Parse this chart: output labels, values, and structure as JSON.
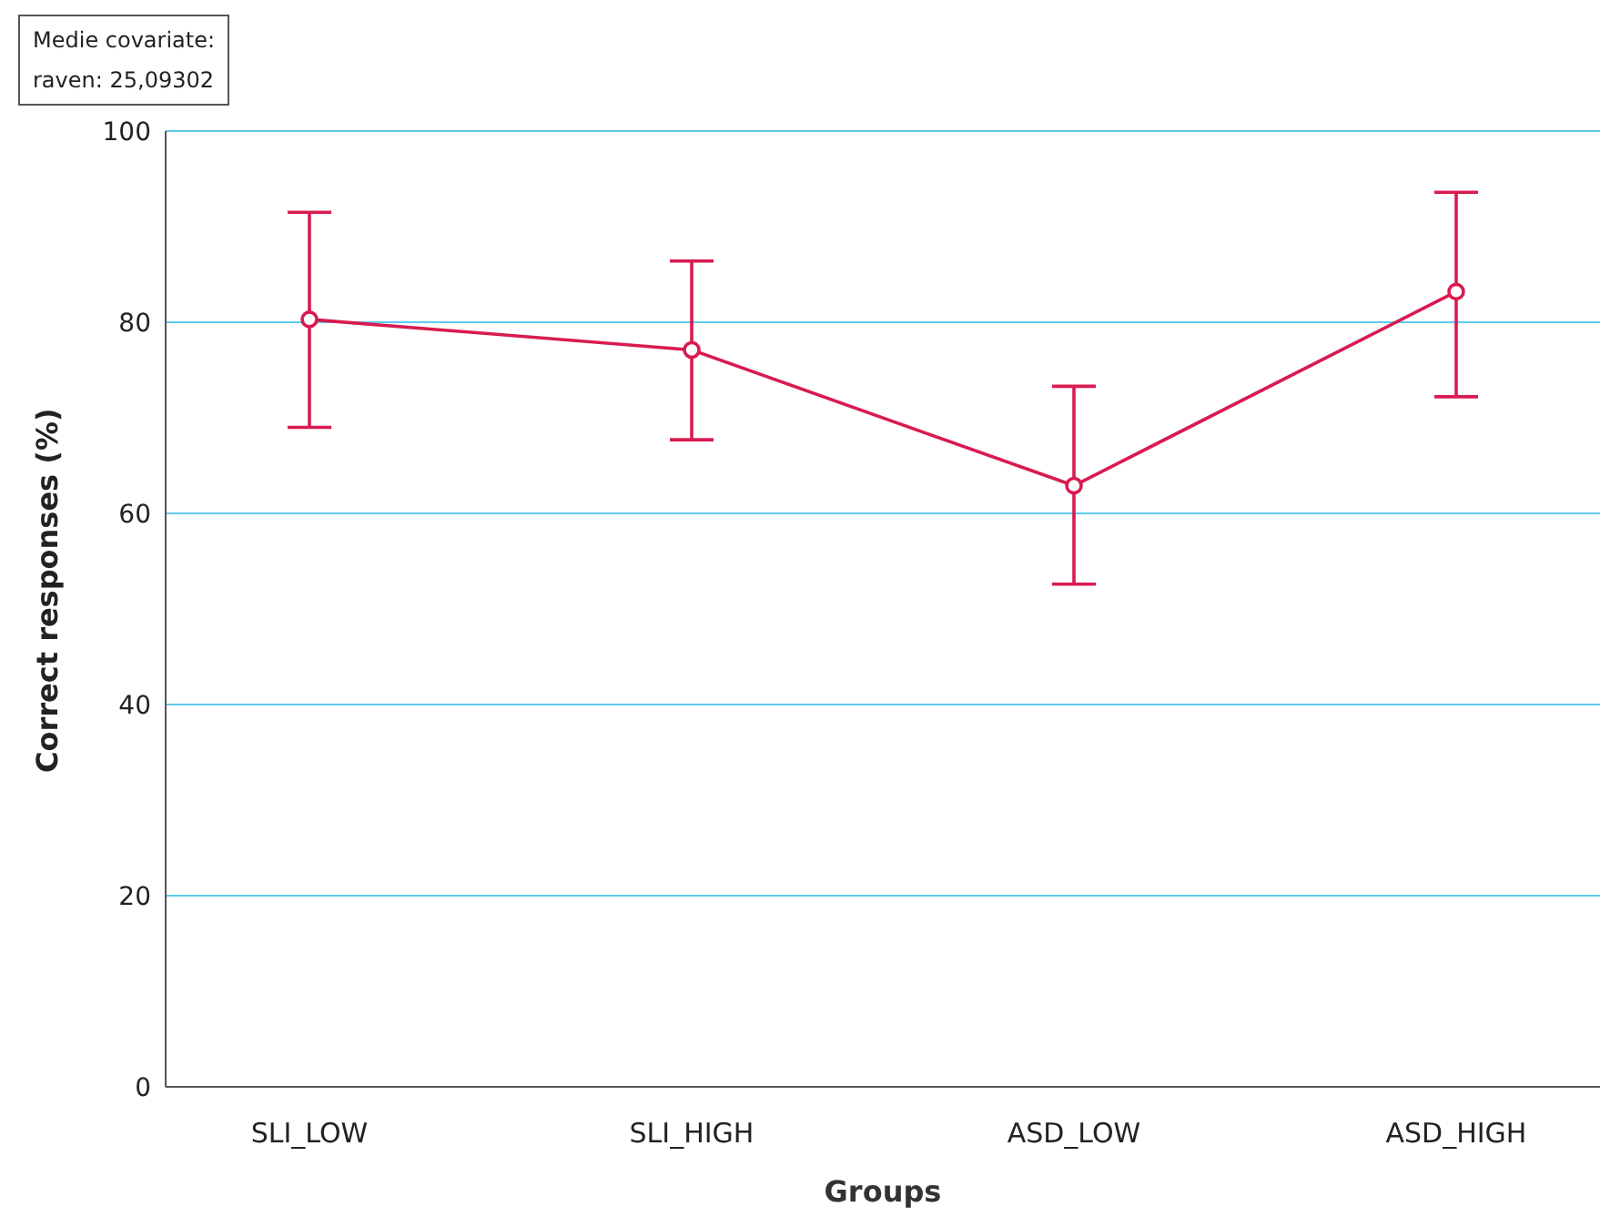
{
  "chart_data": {
    "type": "line",
    "xlabel": "Groups",
    "ylabel": "Correct responses (%)",
    "categories": [
      "SLI_LOW",
      "SLI_HIGH",
      "ASD_LOW",
      "ASD_HIGH"
    ],
    "series": [
      {
        "color": "#d81b50",
        "values": [
          80.3,
          77.1,
          62.9,
          83.2
        ],
        "errors": [
          [
            69.0,
            91.5
          ],
          [
            67.7,
            86.4
          ],
          [
            52.6,
            73.3
          ],
          [
            72.2,
            93.6
          ]
        ]
      }
    ],
    "ylim": [
      0,
      100
    ],
    "yticks": [
      0,
      20,
      40,
      60,
      80,
      100
    ],
    "grid": "y",
    "marker": "circle",
    "line_style": "solid",
    "annotations": [
      "Medie covariate:\nraven: 25,09302"
    ]
  }
}
